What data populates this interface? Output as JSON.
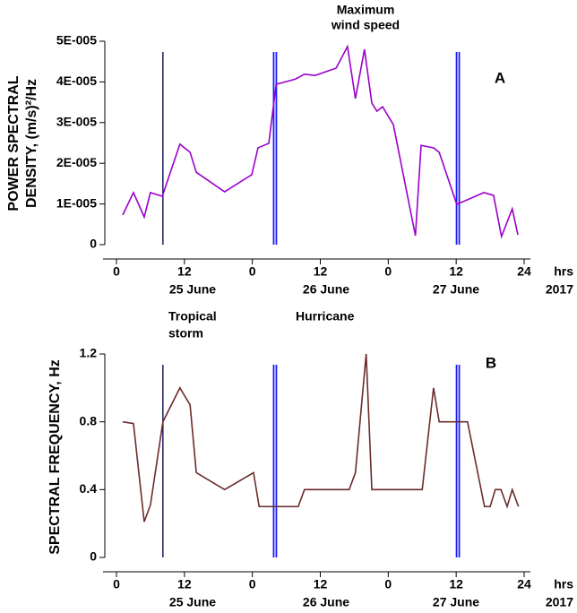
{
  "chart_data": [
    {
      "type": "line",
      "ylabel": [
        "POWER SPECTRAL",
        "DENSITY, (m/s)²/Hz"
      ],
      "x": [
        1.1,
        3.0,
        4.9,
        6.0,
        8.1,
        11.2,
        13.0,
        14.1,
        19.1,
        23.9,
        25.0,
        26.9,
        28.2,
        31.6,
        33.2,
        35.1,
        38.8,
        40.8,
        42.2,
        43.8,
        45.1,
        46.0,
        47.0,
        48.9,
        52.8,
        53.8,
        56.0,
        57.0,
        60.1,
        64.9,
        66.6,
        68.0,
        69.9,
        70.9
      ],
      "series": [
        {
          "color": "#9b00cc",
          "values": [
            7.3e-06,
            1.28e-05,
            6.8e-06,
            1.28e-05,
            1.19e-05,
            2.47e-05,
            2.27e-05,
            1.78e-05,
            1.3e-05,
            1.72e-05,
            2.38e-05,
            2.49e-05,
            3.94e-05,
            4.07e-05,
            4.19e-05,
            4.16e-05,
            4.34e-05,
            4.87e-05,
            3.59e-05,
            4.8e-05,
            3.48e-05,
            3.28e-05,
            3.39e-05,
            2.95e-05,
            2.2e-06,
            2.44e-05,
            2.38e-05,
            2.27e-05,
            9.9e-06,
            1.28e-05,
            1.21e-05,
            2e-06,
            8.8e-06,
            2.4e-06
          ]
        }
      ],
      "xlim": [
        0,
        72
      ],
      "xticks": [
        0,
        12,
        {
          "value": 24,
          "label": "0"
        },
        {
          "value": 36,
          "label": "12"
        },
        {
          "value": 48,
          "label": "0"
        },
        {
          "value": 60,
          "label": "12"
        },
        {
          "value": 72,
          "label": "24"
        }
      ],
      "ylim": [
        0,
        5e-05
      ],
      "yticks": [
        0,
        {
          "value": 1e-05,
          "label": "1E-005"
        },
        {
          "value": 2e-05,
          "label": "2E-005"
        },
        {
          "value": 3e-05,
          "label": "3E-005"
        },
        {
          "value": 4e-05,
          "label": "4E-005"
        },
        {
          "value": 5e-05,
          "label": "5E-005"
        }
      ],
      "day_labels": [
        "25  June",
        "26 June",
        "27 June"
      ],
      "xlabel": [
        "hrs",
        "2017"
      ],
      "vlines": [
        8.2,
        28.0,
        60.3
      ],
      "vline_color": "#1a1aff",
      "annotations": [
        {
          "text": "Maximum",
          "color": "#1f4f4f"
        },
        {
          "text": "wind speed",
          "color": "#1f4f4f"
        },
        {
          "text": "A",
          "color": "#000000"
        }
      ]
    },
    {
      "type": "line",
      "ylabel": [
        "SPECTRAL FREQUENCY, Hz"
      ],
      "x": [
        1.1,
        3.0,
        4.9,
        6.0,
        8.2,
        11.2,
        13.0,
        14.1,
        19.1,
        24.2,
        25.2,
        32.1,
        33.2,
        41.1,
        42.2,
        44.1,
        45.1,
        54.0,
        56.0,
        57.0,
        62.0,
        65.0,
        66.0,
        66.9,
        67.9,
        69.0,
        69.9,
        71.0
      ],
      "series": [
        {
          "color": "#6b2b2b",
          "values": [
            0.8,
            0.79,
            0.21,
            0.31,
            0.8,
            1.0,
            0.9,
            0.5,
            0.4,
            0.5,
            0.3,
            0.3,
            0.4,
            0.4,
            0.5,
            1.2,
            0.4,
            0.4,
            1.0,
            0.8,
            0.8,
            0.3,
            0.3,
            0.4,
            0.4,
            0.3,
            0.4,
            0.3
          ]
        }
      ],
      "xlim": [
        0,
        72
      ],
      "xticks": [
        0,
        12,
        {
          "value": 24,
          "label": "0"
        },
        {
          "value": 36,
          "label": "12"
        },
        {
          "value": 48,
          "label": "0"
        },
        {
          "value": 60,
          "label": "12"
        },
        {
          "value": 72,
          "label": "24"
        }
      ],
      "ylim": [
        0,
        1.2
      ],
      "yticks": [
        0,
        0.4,
        0.8,
        1.2
      ],
      "day_labels": [
        "25  June",
        "26 June",
        "27 June"
      ],
      "xlabel": [
        "hrs",
        "2017"
      ],
      "vlines": [
        8.2,
        28.0,
        60.3
      ],
      "vline_color": "#1a1aff",
      "annotations": [
        {
          "text": "Tropical",
          "color": "#ff0000"
        },
        {
          "text": "storm",
          "color": "#ff0000"
        },
        {
          "text": "Hurricane",
          "color": "#ff0000"
        },
        {
          "text": "B",
          "color": "#000000"
        }
      ]
    }
  ]
}
